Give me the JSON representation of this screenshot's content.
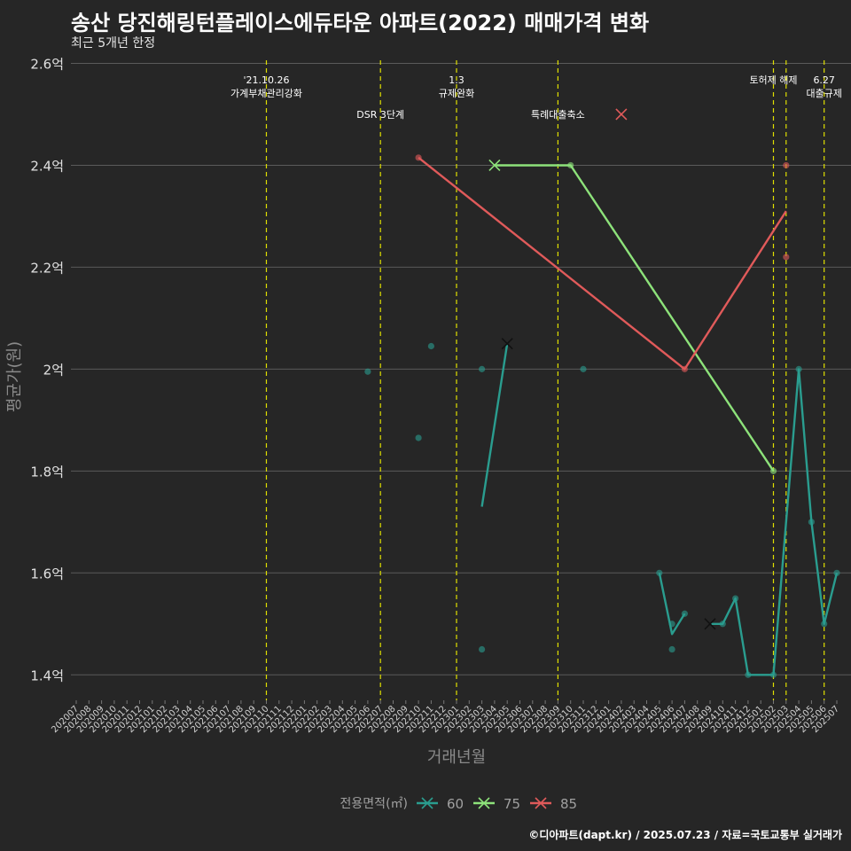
{
  "title": "송산 당진해링턴플레이스에듀타운 아파트(2022) 매매가격 변화",
  "subtitle": "최근 5개년 한정",
  "footer": "©디아파트(dapt.kr) / 2025.07.23 / 자료=국토교통부 실거래가",
  "colors": {
    "background": "#262626",
    "grid": "#5a5a5a",
    "event_line": "#e0e000",
    "s60": "#2a9d8f",
    "s75": "#8de27a",
    "s85": "#e05a5a"
  },
  "chart_data": {
    "type": "line",
    "xlabel": "거래년월",
    "ylabel": "평균가(원)",
    "ylim": [
      1.35,
      2.62
    ],
    "y_ticks": [
      {
        "v": 1.4,
        "label": "1.4억"
      },
      {
        "v": 1.6,
        "label": "1.6억"
      },
      {
        "v": 1.8,
        "label": "1.8억"
      },
      {
        "v": 2.0,
        "label": "2억"
      },
      {
        "v": 2.2,
        "label": "2.2억"
      },
      {
        "v": 2.4,
        "label": "2.4억"
      },
      {
        "v": 2.6,
        "label": "2.6억"
      }
    ],
    "months": [
      "202007",
      "202008",
      "202009",
      "202010",
      "202011",
      "202012",
      "202101",
      "202102",
      "202103",
      "202104",
      "202105",
      "202106",
      "202107",
      "202108",
      "202109",
      "202110",
      "202111",
      "202112",
      "202201",
      "202202",
      "202203",
      "202204",
      "202205",
      "202206",
      "202207",
      "202208",
      "202209",
      "202210",
      "202211",
      "202212",
      "202301",
      "202302",
      "202303",
      "202304",
      "202305",
      "202306",
      "202307",
      "202308",
      "202309",
      "202310",
      "202311",
      "202312",
      "202401",
      "202402",
      "202403",
      "202404",
      "202405",
      "202406",
      "202407",
      "202408",
      "202409",
      "202410",
      "202411",
      "202412",
      "202501",
      "202502",
      "202503",
      "202504",
      "202505",
      "202506",
      "202507"
    ],
    "legend": {
      "title": "전용면적(㎡)",
      "items": [
        "60",
        "75",
        "85"
      ]
    },
    "events": [
      {
        "month": "202110",
        "label": "'21.10.26\n가계부채관리강화",
        "level": 0
      },
      {
        "month": "202207",
        "label": "DSR 3단계",
        "level": 1
      },
      {
        "month": "202301",
        "label": "1.3\n규제완화",
        "level": 0
      },
      {
        "month": "202309",
        "label": "특례대출축소",
        "level": 1
      },
      {
        "month": "202502",
        "label": "토허제 해제",
        "level": 0
      },
      {
        "month": "202503",
        "label": "",
        "level": 0
      },
      {
        "month": "202506",
        "label": "6.27\n대출규제",
        "level": 0
      }
    ],
    "series": [
      {
        "name": "60",
        "color": "#2a9d8f",
        "line": [
          [
            "202303",
            1.73
          ],
          [
            "202305",
            2.05
          ],
          null,
          [
            "202405",
            1.6
          ],
          [
            "202406",
            1.48
          ],
          [
            "202407",
            1.52
          ],
          null,
          [
            "202409",
            1.5
          ],
          [
            "202410",
            1.5
          ],
          [
            "202411",
            1.55
          ],
          [
            "202412",
            1.4
          ],
          [
            "202502",
            1.4
          ],
          [
            "202504",
            2.0
          ],
          [
            "202505",
            1.7
          ],
          [
            "202506",
            1.5
          ],
          [
            "202507",
            1.6
          ]
        ],
        "points": [
          [
            "202206",
            1.995
          ],
          [
            "202210",
            1.865
          ],
          [
            "202211",
            2.045
          ],
          [
            "202303",
            2.0
          ],
          [
            "202303",
            1.45
          ],
          [
            "202311",
            2.0
          ],
          [
            "202405",
            1.6
          ],
          [
            "202406",
            1.5
          ],
          [
            "202406",
            1.45
          ],
          [
            "202407",
            1.52
          ],
          [
            "202410",
            1.5
          ],
          [
            "202411",
            1.55
          ],
          [
            "202412",
            1.4
          ],
          [
            "202502",
            1.4
          ],
          [
            "202504",
            2.0
          ],
          [
            "202505",
            1.7
          ],
          [
            "202506",
            1.5
          ],
          [
            "202507",
            1.6
          ]
        ],
        "cross": [
          [
            "202305",
            2.05
          ],
          [
            "202409",
            1.5
          ]
        ]
      },
      {
        "name": "75",
        "color": "#8de27a",
        "line": [
          [
            "202304",
            2.4
          ],
          [
            "202310",
            2.4
          ],
          [
            "202502",
            1.8
          ]
        ],
        "points": [
          [
            "202310",
            2.4
          ],
          [
            "202502",
            1.8
          ]
        ],
        "cross": [
          [
            "202304",
            2.4
          ]
        ]
      },
      {
        "name": "85",
        "color": "#e05a5a",
        "line": [
          [
            "202210",
            2.415
          ],
          [
            "202407",
            2.0
          ],
          [
            "202503",
            2.31
          ]
        ],
        "points": [
          [
            "202210",
            2.415
          ],
          [
            "202407",
            2.0
          ],
          [
            "202503",
            2.4
          ],
          [
            "202503",
            2.22
          ]
        ],
        "cross": [
          [
            "202402",
            2.5
          ]
        ]
      }
    ]
  }
}
